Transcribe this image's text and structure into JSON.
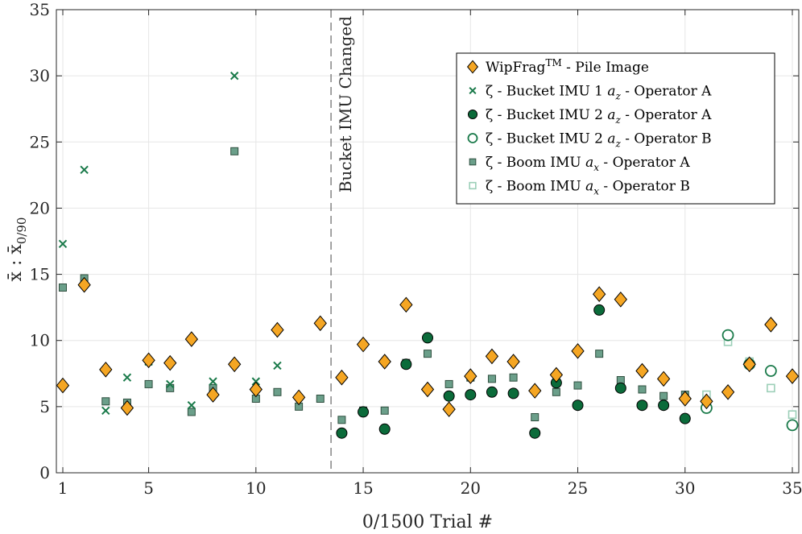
{
  "chart_data": {
    "type": "scatter",
    "title": "",
    "xlabel": "0/1500 Trial #",
    "ylabel": "x̄ : x̄",
    "ylabel_sub": "0/90",
    "xlim": [
      0.7,
      35.3
    ],
    "ylim": [
      0,
      35
    ],
    "xticks": [
      1,
      5,
      10,
      15,
      20,
      25,
      30,
      35
    ],
    "yticks": [
      0,
      5,
      10,
      15,
      20,
      25,
      30,
      35
    ],
    "grid": true,
    "legend_position": "top-right",
    "colors": {
      "orange": "#F5A623",
      "dark_green": "#0B6B3A",
      "medium_green": "#1A7A4A",
      "gray_green": "#6B9F8A",
      "light_green": "#9CCFB8",
      "axis": "#262626",
      "grid": "#E6E6E6"
    },
    "annotation": {
      "text": "Bucket IMU Changed",
      "x": 13.5
    },
    "series": [
      {
        "name": "WipFrag - Pile Image",
        "legend_prefix": "WipFrag",
        "legend_sup": "TM",
        "legend_suffix": " - Pile Image",
        "marker": "diamond",
        "points": [
          [
            1,
            6.6
          ],
          [
            2,
            14.2
          ],
          [
            3,
            7.8
          ],
          [
            4,
            4.9
          ],
          [
            5,
            8.5
          ],
          [
            6,
            8.3
          ],
          [
            7,
            10.1
          ],
          [
            8,
            5.9
          ],
          [
            9,
            8.2
          ],
          [
            10,
            6.3
          ],
          [
            11,
            10.8
          ],
          [
            12,
            5.7
          ],
          [
            13,
            11.3
          ],
          [
            14,
            7.2
          ],
          [
            15,
            9.7
          ],
          [
            16,
            8.4
          ],
          [
            17,
            12.7
          ],
          [
            18,
            6.3
          ],
          [
            19,
            4.8
          ],
          [
            20,
            7.3
          ],
          [
            21,
            8.8
          ],
          [
            22,
            8.4
          ],
          [
            23,
            6.2
          ],
          [
            24,
            7.4
          ],
          [
            25,
            9.2
          ],
          [
            26,
            13.5
          ],
          [
            27,
            13.1
          ],
          [
            28,
            7.7
          ],
          [
            29,
            7.1
          ],
          [
            30,
            5.6
          ],
          [
            31,
            5.4
          ],
          [
            32,
            6.1
          ],
          [
            33,
            8.2
          ],
          [
            34,
            11.2
          ],
          [
            35,
            7.3
          ]
        ]
      },
      {
        "name": "ζ - Bucket IMU 1 a_z - Operator A",
        "legend_prefix": "ζ - Bucket IMU 1 ",
        "legend_var": "a",
        "legend_sub": "z",
        "legend_suffix": " - Operator A",
        "marker": "x",
        "points": [
          [
            1,
            17.3
          ],
          [
            2,
            22.9
          ],
          [
            3,
            4.7
          ],
          [
            4,
            7.2
          ],
          [
            5,
            8.4
          ],
          [
            6,
            6.7
          ],
          [
            7,
            5.1
          ],
          [
            8,
            6.9
          ],
          [
            9,
            30.0
          ],
          [
            10,
            6.9
          ],
          [
            11,
            8.1
          ]
        ]
      },
      {
        "name": "ζ - Bucket IMU 2 a_z - Operator A",
        "legend_prefix": "ζ - Bucket IMU 2 ",
        "legend_var": "a",
        "legend_sub": "z",
        "legend_suffix": " - Operator A",
        "marker": "filled-circle",
        "points": [
          [
            14,
            3.0
          ],
          [
            15,
            4.6
          ],
          [
            16,
            3.3
          ],
          [
            17,
            8.2
          ],
          [
            18,
            10.2
          ],
          [
            19,
            5.8
          ],
          [
            20,
            5.9
          ],
          [
            21,
            6.1
          ],
          [
            22,
            6.0
          ],
          [
            23,
            3.0
          ],
          [
            24,
            6.8
          ],
          [
            25,
            5.1
          ],
          [
            26,
            12.3
          ],
          [
            27,
            6.4
          ],
          [
            28,
            5.1
          ],
          [
            29,
            5.1
          ],
          [
            30,
            4.1
          ]
        ]
      },
      {
        "name": "ζ - Bucket IMU 2 a_z - Operator B",
        "legend_prefix": "ζ - Bucket IMU 2 ",
        "legend_var": "a",
        "legend_sub": "z",
        "legend_suffix": " - Operator B",
        "marker": "open-circle",
        "points": [
          [
            31,
            4.9
          ],
          [
            32,
            10.4
          ],
          [
            33,
            8.2
          ],
          [
            34,
            7.7
          ],
          [
            35,
            3.6
          ]
        ]
      },
      {
        "name": "ζ - Boom IMU a_x - Operator A",
        "legend_prefix": "ζ - Boom IMU ",
        "legend_var": "a",
        "legend_sub": "x",
        "legend_suffix": " - Operator A",
        "marker": "filled-square",
        "points": [
          [
            1,
            14.0
          ],
          [
            2,
            14.7
          ],
          [
            3,
            5.4
          ],
          [
            4,
            5.3
          ],
          [
            5,
            6.7
          ],
          [
            6,
            6.4
          ],
          [
            7,
            4.6
          ],
          [
            8,
            6.4
          ],
          [
            9,
            24.3
          ],
          [
            10,
            5.6
          ],
          [
            11,
            6.1
          ],
          [
            12,
            5.0
          ],
          [
            13,
            5.6
          ],
          [
            14,
            4.0
          ],
          [
            15,
            4.7
          ],
          [
            16,
            4.7
          ],
          [
            17,
            8.3
          ],
          [
            18,
            9.0
          ],
          [
            19,
            6.7
          ],
          [
            20,
            7.2
          ],
          [
            21,
            7.1
          ],
          [
            22,
            7.2
          ],
          [
            23,
            4.2
          ],
          [
            24,
            6.1
          ],
          [
            25,
            6.6
          ],
          [
            26,
            9.0
          ],
          [
            27,
            7.0
          ],
          [
            28,
            6.3
          ],
          [
            29,
            5.8
          ],
          [
            30,
            5.9
          ]
        ]
      },
      {
        "name": "ζ - Boom IMU a_x - Operator B",
        "legend_prefix": "ζ - Boom IMU ",
        "legend_var": "a",
        "legend_sub": "x",
        "legend_suffix": " - Operator B",
        "marker": "open-square",
        "points": [
          [
            31,
            5.9
          ],
          [
            32,
            9.9
          ],
          [
            33,
            8.4
          ],
          [
            34,
            6.4
          ],
          [
            35,
            4.4
          ]
        ]
      }
    ]
  }
}
